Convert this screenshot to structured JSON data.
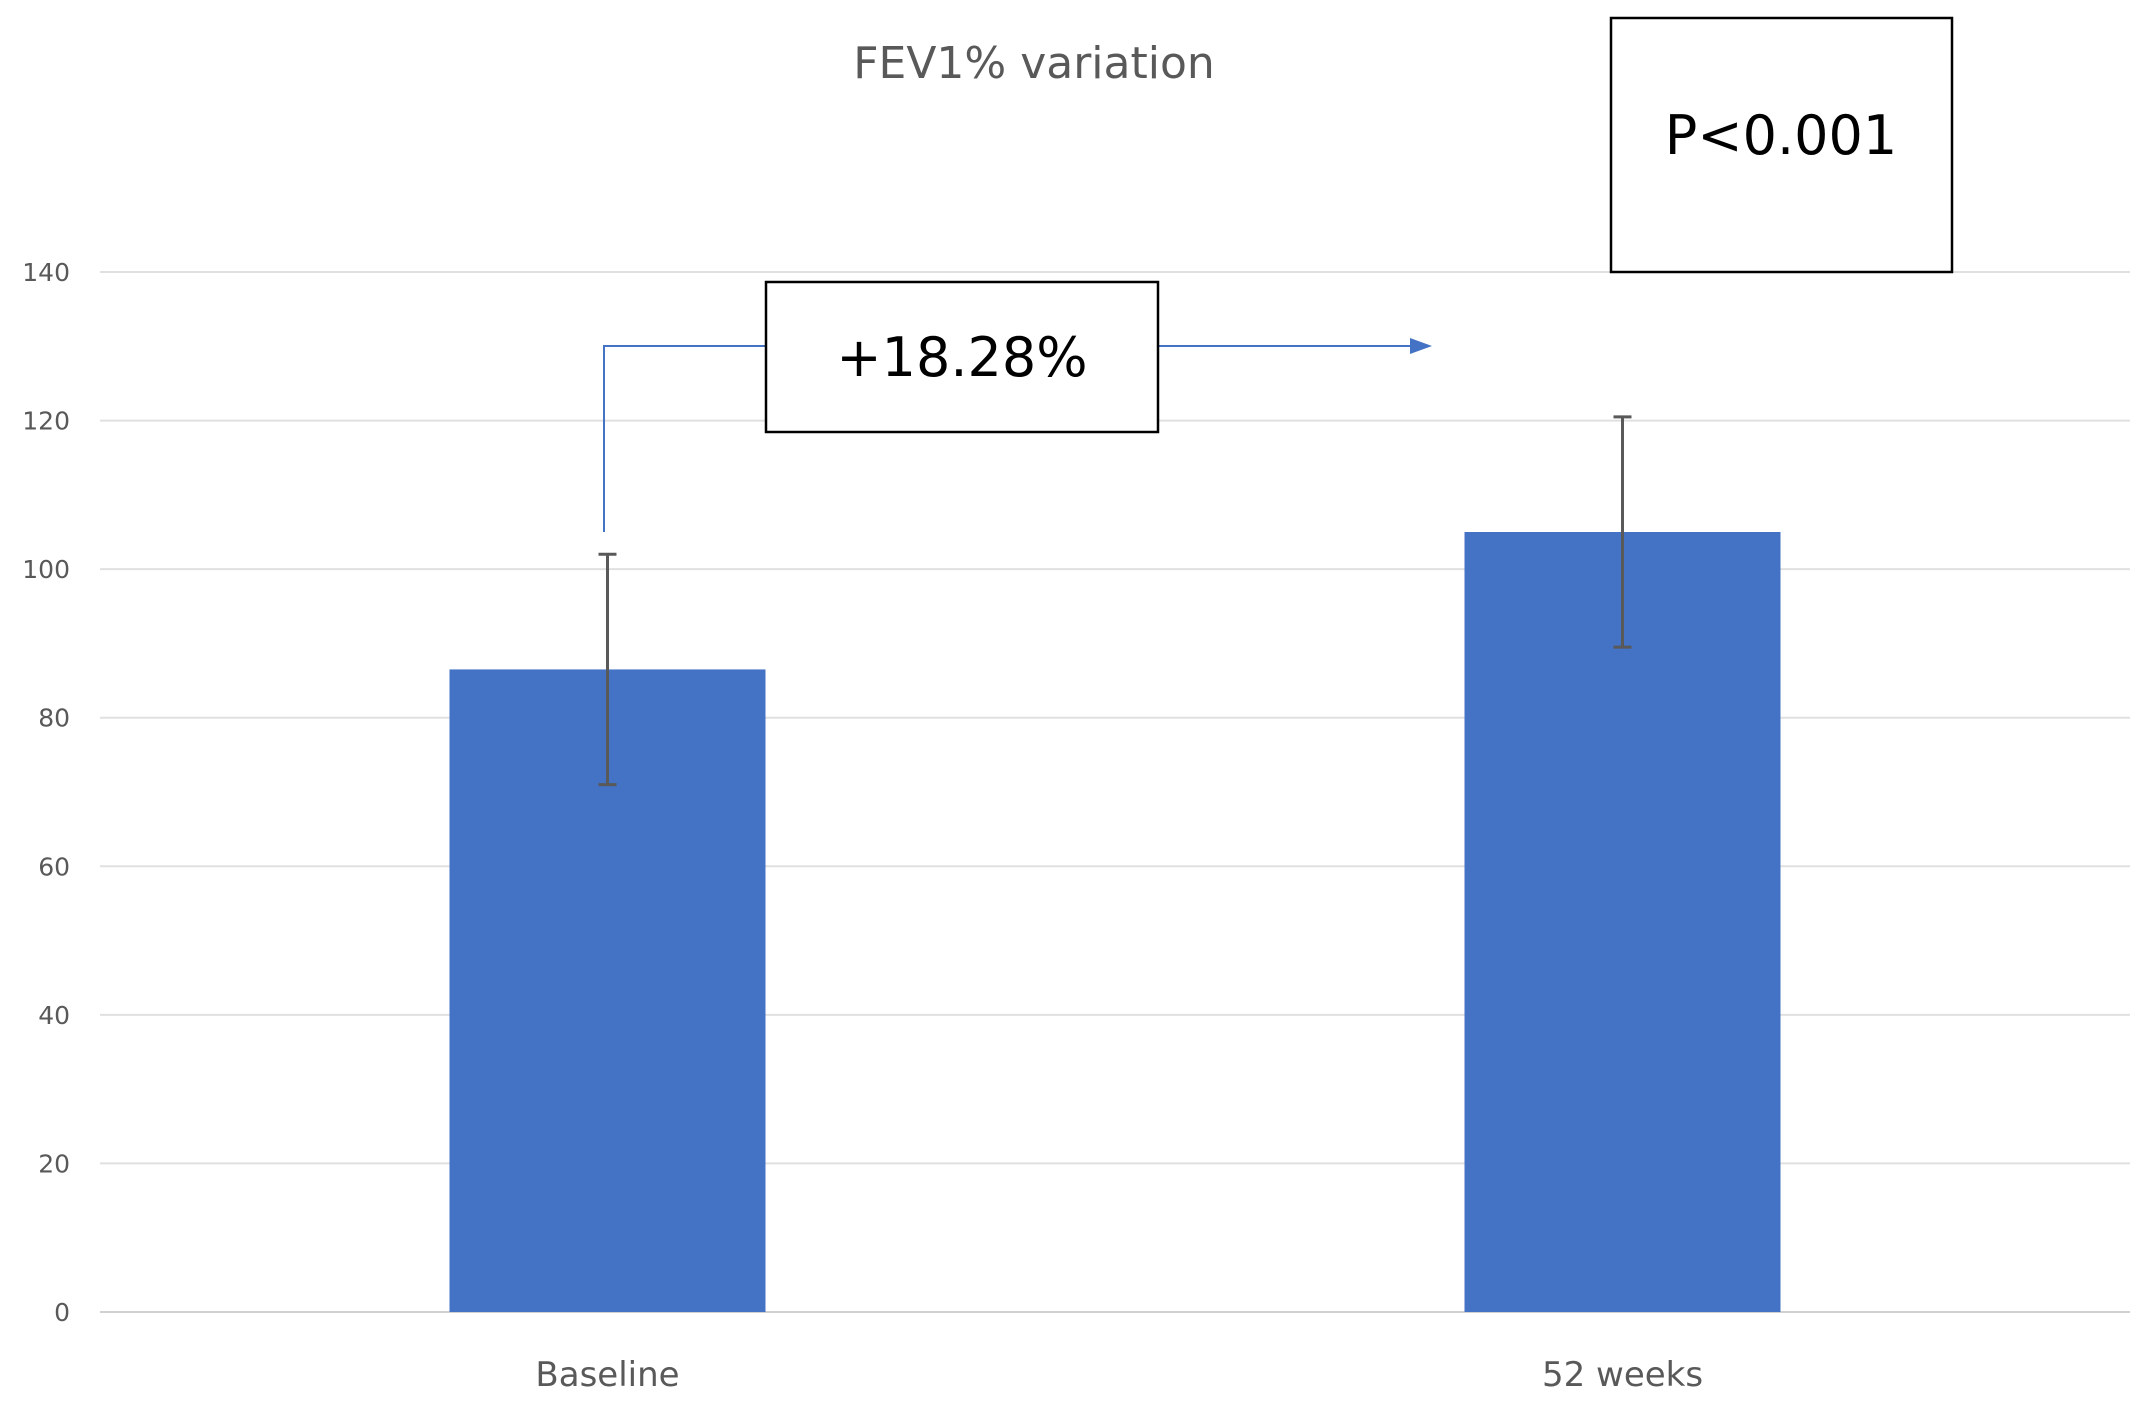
{
  "chart_data": {
    "type": "bar",
    "title": "FEV1% variation",
    "xlabel": "",
    "ylabel": "",
    "ylim": [
      0,
      140
    ],
    "yticks": [
      0,
      20,
      40,
      60,
      80,
      100,
      120,
      140
    ],
    "grid": true,
    "categories": [
      "Baseline",
      "52 weeks"
    ],
    "series": [
      {
        "name": "FEV1%",
        "values": [
          86.5,
          105
        ],
        "error": [
          15.5,
          15.5
        ],
        "color": "#4472C4"
      }
    ],
    "annotations": {
      "change_label": "+18.28%",
      "pvalue_label": "P<0.001"
    }
  }
}
